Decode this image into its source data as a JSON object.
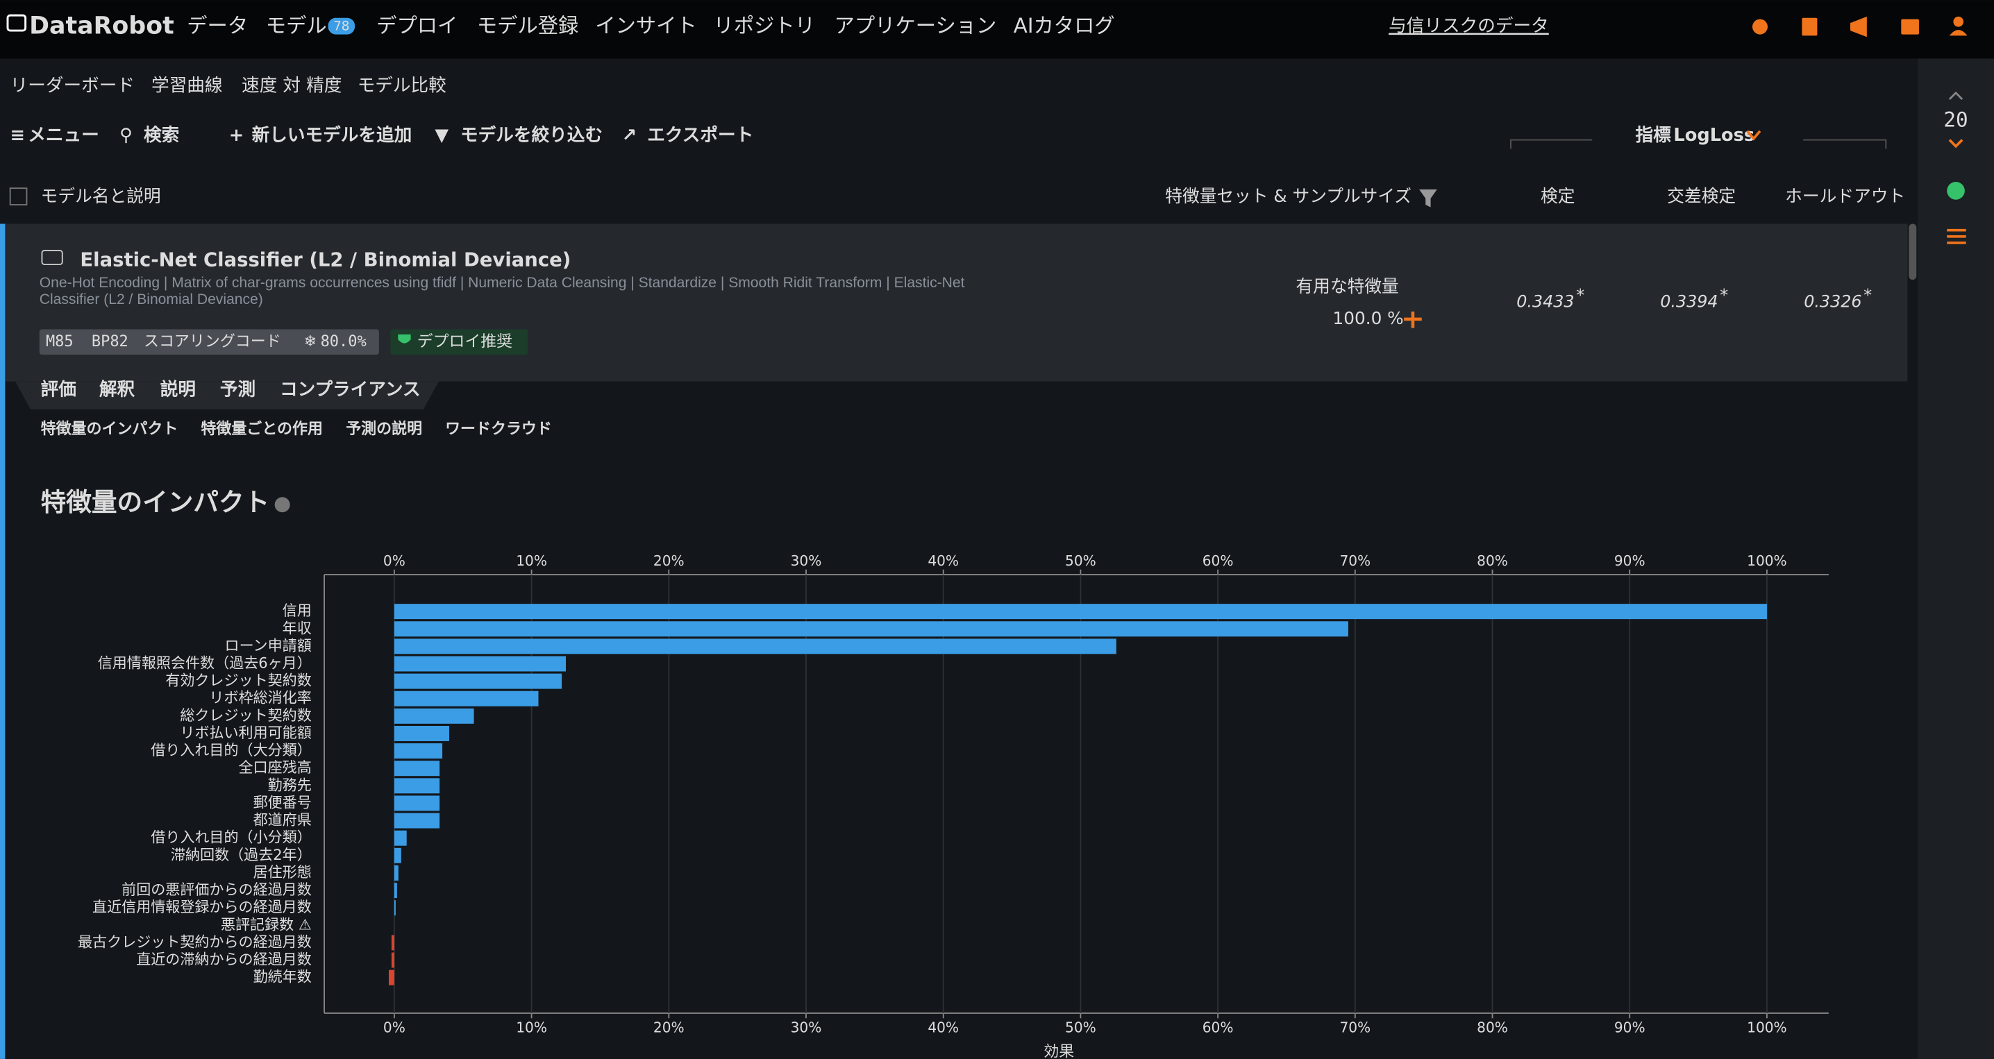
{
  "nav": {
    "logo": "DataRobot",
    "items": [
      "データ",
      "モデル",
      "デプロイ",
      "モデル登録",
      "インサイト",
      "リポジトリ",
      "アプリケーション",
      "AIカタログ"
    ],
    "model_badge": "78",
    "project": "与信リスクのデータ"
  },
  "subnav": [
    "リーダーボード",
    "学習曲線",
    "速度 対 精度",
    "モデル比較"
  ],
  "toolbar": {
    "items": [
      "メニュー",
      "検索",
      "新しいモデルを追加",
      "モデルを絞り込む",
      "エクスポート"
    ],
    "metric_label": "指標",
    "metric": "LogLoss"
  },
  "sidebar": {
    "count": "20"
  },
  "columns": [
    "モデル名と説明",
    "特徴量セット & サンプルサイズ",
    "検定",
    "交差検定",
    "ホールドアウト"
  ],
  "model": {
    "name": "Elastic-Net Classifier (L2 / Binomial Deviance)",
    "blueprint": "One-Hot Encoding | Matrix of char-grams occurrences using tfidf | Numeric Data Cleansing | Standardize | Smooth Ridit Transform | Elastic-Net Classifier (L2 / Binomial Deviance)",
    "tags": [
      "M85",
      "BP82",
      "スコアリングコード",
      "80.0%"
    ],
    "badge": "デプロイ推奨",
    "features_label": "有用な特徴量",
    "features_pct": "100.0 %",
    "scores": [
      "0.3433",
      "0.3394",
      "0.3326"
    ],
    "score_mark": "*"
  },
  "tabs": [
    "評価",
    "解釈",
    "説明",
    "予測",
    "コンプライアンス"
  ],
  "subtabs": [
    "特徴量のインパクト",
    "特徴量ごとの作用",
    "予測の説明",
    "ワードクラウド"
  ],
  "chart": {
    "type": "bar",
    "title": "特徴量のインパクト",
    "x_label": "効果",
    "categories": [
      "信用",
      "年収",
      "ローン申請額",
      "信用情報照会件数（過去6ヶ月）",
      "有効クレジット契約数",
      "リボ枠総消化率",
      "総クレジット契約数",
      "リボ払い利用可能額",
      "借り入れ目的（大分類）",
      "全口座残高",
      "勤務先",
      "郵便番号",
      "都道府県",
      "借り入れ目的（小分類）",
      "滞納回数（過去2年）",
      "居住形態",
      "前回の悪評価からの経過月数",
      "直近信用情報登録からの経過月数",
      "悪評記録数 ⚠",
      "最古クレジット契約からの経過月数",
      "直近の滞納からの経過月数",
      "勤続年数"
    ],
    "values": [
      100,
      69.5,
      52.6,
      12.5,
      12.2,
      10.5,
      5.8,
      4.0,
      3.5,
      3.3,
      3.3,
      3.3,
      3.3,
      0.9,
      0.5,
      0.3,
      0.2,
      0.1,
      0,
      -0.2,
      -0.2,
      -0.4
    ],
    "label_colors": [
      "#ddd",
      "#ddd",
      "#ddd",
      "#ddd",
      "#ddd",
      "#ddd",
      "#ddd",
      "#ddd",
      "#ddd",
      "#ddd",
      "#ddd",
      "#ddd",
      "#ddd",
      "#ddd",
      "#ddd",
      "#ddd",
      "#ddd",
      "#ddd",
      "#e8a33a",
      "#ddd",
      "#ddd",
      "#ddd"
    ],
    "color": "#3b9de6",
    "negative_color": "#d9452e",
    "xlim": [
      -5.1,
      104.5
    ],
    "xticks": [
      {
        "value": 0,
        "label": "0%"
      },
      {
        "value": 10,
        "label": "10%"
      },
      {
        "value": 20,
        "label": "20%"
      },
      {
        "value": 30,
        "label": "30%"
      },
      {
        "value": 40,
        "label": "40%"
      },
      {
        "value": 50,
        "label": "50%"
      },
      {
        "value": 60,
        "label": "60%"
      },
      {
        "value": 70,
        "label": "70%"
      },
      {
        "value": 80,
        "label": "80%"
      },
      {
        "value": 90,
        "label": "90%"
      },
      {
        "value": 100,
        "label": "100%"
      }
    ],
    "grid": true
  }
}
